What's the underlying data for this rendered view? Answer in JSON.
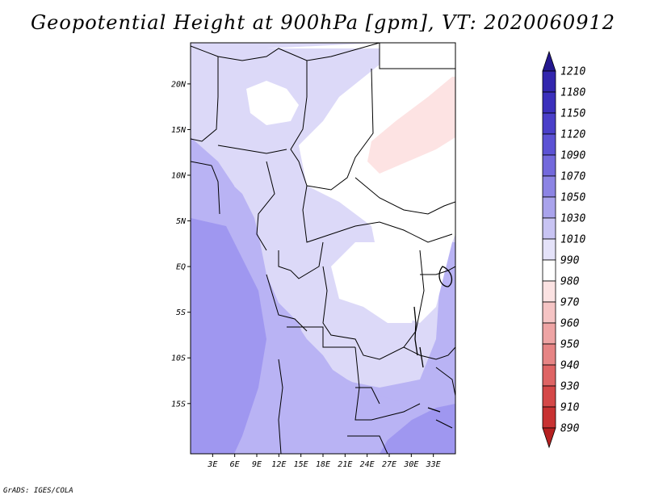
{
  "title": "Geopotential Height at 900hPa [gpm], VT: 2020060912",
  "credit": "GrADS: IGES/COLA",
  "map": {
    "lat_range": [
      -20.5,
      24.5
    ],
    "lon_range": [
      0,
      36
    ],
    "lat_ticks": [
      {
        "value": 20,
        "label": "20N"
      },
      {
        "value": 15,
        "label": "15N"
      },
      {
        "value": 10,
        "label": "10N"
      },
      {
        "value": 5,
        "label": "5N"
      },
      {
        "value": 0,
        "label": "EQ"
      },
      {
        "value": -5,
        "label": "5S"
      },
      {
        "value": -10,
        "label": "10S"
      },
      {
        "value": -15,
        "label": "15S"
      }
    ],
    "lon_ticks": [
      {
        "value": 3,
        "label": "3E"
      },
      {
        "value": 6,
        "label": "6E"
      },
      {
        "value": 9,
        "label": "9E"
      },
      {
        "value": 12,
        "label": "12E"
      },
      {
        "value": 15,
        "label": "15E"
      },
      {
        "value": 18,
        "label": "18E"
      },
      {
        "value": 21,
        "label": "21E"
      },
      {
        "value": 24,
        "label": "24E"
      },
      {
        "value": 27,
        "label": "27E"
      },
      {
        "value": 30,
        "label": "30E"
      },
      {
        "value": 33,
        "label": "33E"
      }
    ]
  },
  "colorbar": {
    "levels": [
      {
        "label": "1210",
        "color": "#2b1f9e"
      },
      {
        "label": "1180",
        "color": "#3226ad"
      },
      {
        "label": "1150",
        "color": "#3b30bc"
      },
      {
        "label": "1120",
        "color": "#4a3fc9"
      },
      {
        "label": "1090",
        "color": "#5c52d4"
      },
      {
        "label": "1070",
        "color": "#7369dc"
      },
      {
        "label": "1050",
        "color": "#8c84e4"
      },
      {
        "label": "1030",
        "color": "#a9a3ec"
      },
      {
        "label": "1010",
        "color": "#c8c4f3"
      },
      {
        "label": "990",
        "color": "#e4e2f9"
      },
      {
        "label": "980",
        "color": "#ffffff"
      },
      {
        "label": "970",
        "color": "#fbe2e2"
      },
      {
        "label": "960",
        "color": "#f5c4c4"
      },
      {
        "label": "950",
        "color": "#eea4a4"
      },
      {
        "label": "940",
        "color": "#e68484"
      },
      {
        "label": "930",
        "color": "#de6464"
      },
      {
        "label": "910",
        "color": "#d44848"
      },
      {
        "label": "890",
        "color": "#c83232"
      }
    ],
    "top_cap_color": "#24188f",
    "bottom_cap_color": "#b52020"
  },
  "fields": {
    "lowest_color": "#9f97f0",
    "low_color": "#b9b3f4",
    "mid_color": "#dcd9f8",
    "white_color": "#ffffff",
    "pink_color": "#fde3e3"
  }
}
